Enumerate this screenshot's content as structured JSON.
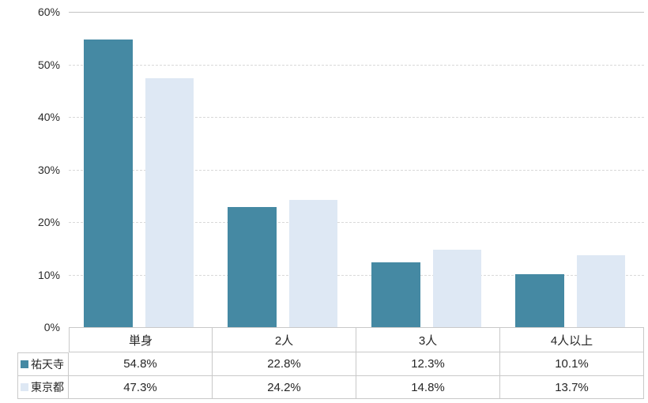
{
  "chart_data": {
    "type": "bar",
    "title": "",
    "categories": [
      "単身",
      "2人",
      "3人",
      "4人以上"
    ],
    "series": [
      {
        "name": "祐天寺",
        "color": "#4589a3",
        "values": [
          54.8,
          22.8,
          12.3,
          10.1
        ]
      },
      {
        "name": "東京都",
        "color": "#dee8f4",
        "values": [
          47.3,
          24.2,
          14.8,
          13.7
        ]
      }
    ],
    "ylim": [
      0,
      60
    ],
    "yticks": [
      "60%",
      "50%",
      "40%",
      "30%",
      "20%",
      "10%",
      "0%"
    ],
    "grid": "horizontal-dashed",
    "legend_position": "data-table-left"
  },
  "data_table": {
    "header": [
      "単身",
      "2人",
      "3人",
      "4人以上"
    ],
    "rows": [
      {
        "label": "祐天寺",
        "values": [
          "54.8%",
          "22.8%",
          "12.3%",
          "10.1%"
        ]
      },
      {
        "label": "東京都",
        "values": [
          "47.3%",
          "24.2%",
          "14.8%",
          "13.7%"
        ]
      }
    ]
  }
}
